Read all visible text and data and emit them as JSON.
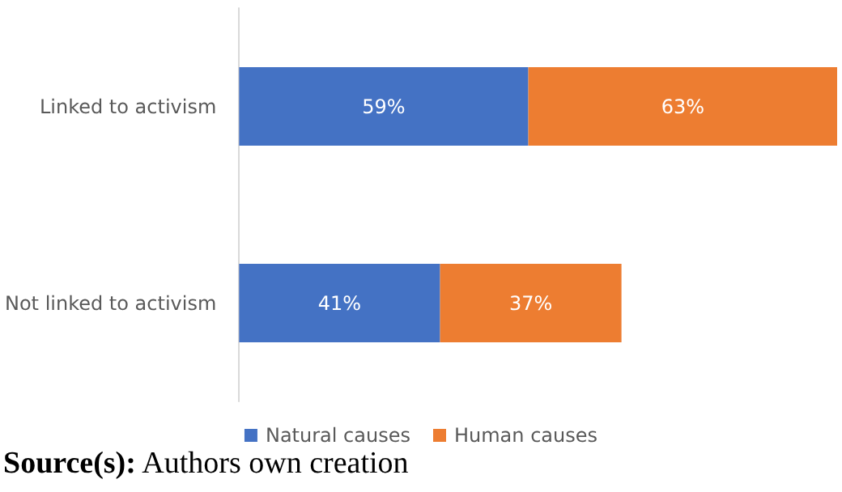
{
  "chart_data": {
    "type": "bar",
    "orientation": "horizontal",
    "stacked": true,
    "categories": [
      "Linked to activism",
      "Not linked to activism"
    ],
    "series": [
      {
        "name": "Natural causes",
        "color": "#4472c4",
        "values": [
          59,
          41
        ],
        "value_labels": [
          "59%",
          "41%"
        ]
      },
      {
        "name": "Human causes",
        "color": "#ed7d31",
        "values": [
          63,
          37
        ],
        "value_labels": [
          "63%",
          "37%"
        ]
      }
    ],
    "legend": "bottom",
    "grid": false,
    "annotations": [
      "Source(s): Authors own creation"
    ]
  }
}
